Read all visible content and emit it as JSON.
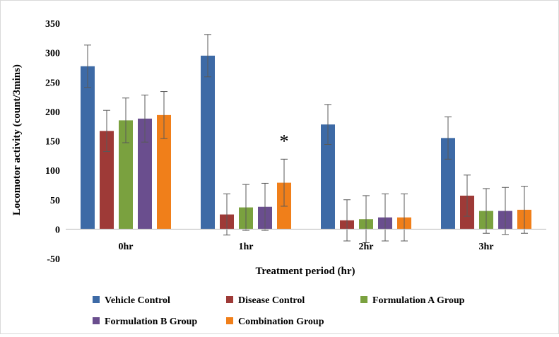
{
  "chart_data": {
    "type": "bar",
    "title": "",
    "xlabel": "Treatment period (hr)",
    "ylabel": "Locomotor activity (count/3mins)",
    "ylim": [
      -50,
      350
    ],
    "yticks": [
      350,
      300,
      250,
      200,
      150,
      100,
      50,
      0,
      -50
    ],
    "grid": false,
    "legend_position": "bottom",
    "categories": [
      "0hr",
      "1hr",
      "2hr",
      "3hr"
    ],
    "series": [
      {
        "name": "Vehicle Control",
        "color": "#3d6aa6",
        "values": [
          277,
          295,
          178,
          155
        ],
        "errors": [
          36,
          36,
          34,
          36
        ]
      },
      {
        "name": "Disease Control",
        "color": "#9e3a37",
        "values": [
          167,
          25,
          15,
          57
        ],
        "errors": [
          35,
          35,
          35,
          35
        ]
      },
      {
        "name": "Formulation A Group",
        "color": "#7aa13f",
        "values": [
          185,
          37,
          17,
          31
        ],
        "errors": [
          38,
          39,
          40,
          38
        ]
      },
      {
        "name": "Formulation B Group",
        "color": "#6a4e8e",
        "values": [
          188,
          38,
          20,
          31
        ],
        "errors": [
          40,
          40,
          40,
          40
        ]
      },
      {
        "name": "Combination Group",
        "color": "#f07f1a",
        "values": [
          194,
          79,
          20,
          33
        ],
        "errors": [
          40,
          40,
          40,
          40
        ]
      }
    ],
    "annotations": [
      {
        "text": "*",
        "category": "1hr",
        "series": "Combination Group"
      }
    ]
  }
}
